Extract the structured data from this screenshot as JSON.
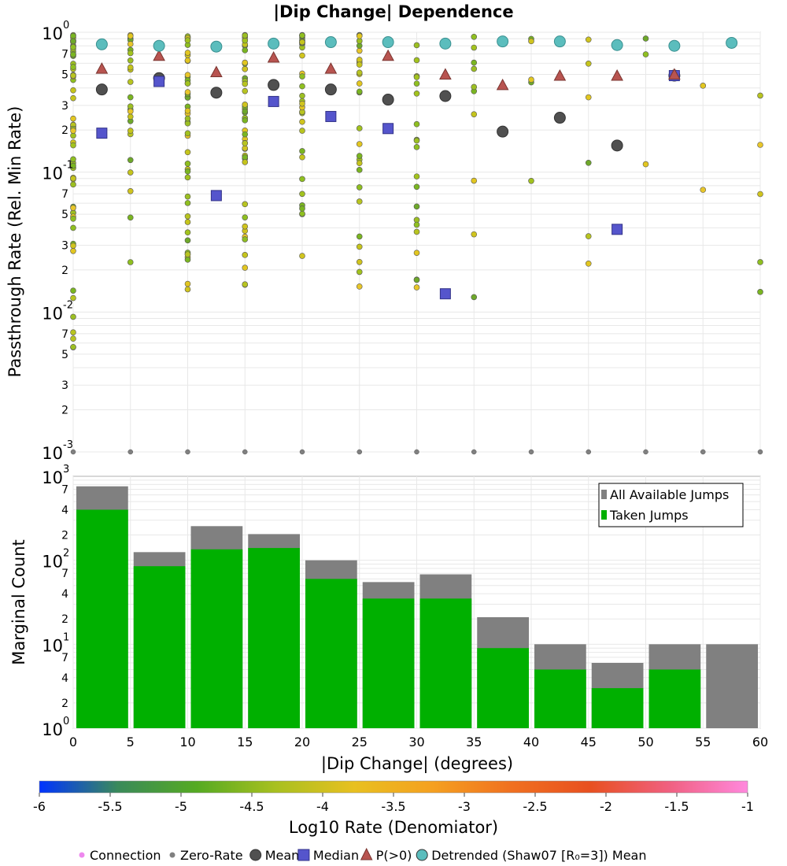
{
  "chart_data": [
    {
      "type": "scatter",
      "title": "|Dip Change| Dependence",
      "ylabel": "Passthrough Rate (Rel. Min Rate)",
      "xlim": [
        0,
        60
      ],
      "ylim": [
        0.001,
        1
      ],
      "yscale": "log",
      "y_decades": [
        "10",
        "10",
        "10",
        "10"
      ],
      "y_decade_exponents": [
        "-3",
        "-2",
        "-1",
        "0"
      ],
      "y_minor_labels": [
        "2",
        "3",
        "5",
        "7"
      ],
      "grid": true,
      "series": [
        {
          "name": "Zero-Rate",
          "color": "#808080",
          "x": [
            0,
            5,
            10,
            15,
            20,
            25,
            30,
            35,
            40,
            45,
            50,
            55,
            60
          ],
          "y": [
            0.001,
            0.001,
            0.001,
            0.001,
            0.001,
            0.001,
            0.001,
            0.001,
            0.001,
            0.001,
            0.001,
            0.001,
            0.001
          ]
        },
        {
          "name": "Mean",
          "color": "#505050",
          "x": [
            2.5,
            7.5,
            12.5,
            17.5,
            22.5,
            27.5,
            32.5,
            37.5,
            42.5,
            47.5,
            52.5
          ],
          "y": [
            0.39,
            0.47,
            0.37,
            0.42,
            0.39,
            0.33,
            0.35,
            0.195,
            0.245,
            0.155,
            0.49
          ]
        },
        {
          "name": "Median",
          "color": "#5555cc",
          "x": [
            2.5,
            7.5,
            12.5,
            17.5,
            22.5,
            27.5,
            32.5,
            47.5,
            52.5
          ],
          "y": [
            0.19,
            0.445,
            0.068,
            0.32,
            0.25,
            0.205,
            0.0135,
            0.039,
            0.49
          ]
        },
        {
          "name": "P(>0)",
          "color": "#b85450",
          "x": [
            2.5,
            7.5,
            12.5,
            17.5,
            22.5,
            27.5,
            32.5,
            37.5,
            42.5,
            47.5,
            52.5
          ],
          "y": [
            0.55,
            0.68,
            0.52,
            0.66,
            0.55,
            0.68,
            0.5,
            0.42,
            0.49,
            0.49,
            0.5
          ]
        },
        {
          "name": "Detrended (Shaw07 [R₀=3]) Mean",
          "color": "#5bbdbd",
          "x": [
            2.5,
            7.5,
            12.5,
            17.5,
            22.5,
            27.5,
            32.5,
            37.5,
            42.5,
            47.5,
            52.5,
            57.5
          ],
          "y": [
            0.82,
            0.8,
            0.79,
            0.83,
            0.85,
            0.85,
            0.83,
            0.86,
            0.86,
            0.81,
            0.8,
            0.84
          ]
        }
      ]
    },
    {
      "type": "bar",
      "ylabel": "Marginal Count",
      "xlabel": "|Dip Change| (degrees)",
      "yscale": "log",
      "ylim": [
        1,
        1000
      ],
      "y_decades": [
        "10",
        "10",
        "10",
        "10"
      ],
      "y_decade_exponents": [
        "0",
        "1",
        "2",
        "3"
      ],
      "y_minor_labels": [
        "2",
        "4",
        "7"
      ],
      "x_ticks": [
        "0",
        "5",
        "10",
        "15",
        "20",
        "25",
        "30",
        "35",
        "40",
        "45",
        "50",
        "55",
        "60"
      ],
      "bin_edges": [
        0,
        5,
        10,
        15,
        20,
        25,
        30,
        35,
        40,
        45,
        50,
        55,
        60
      ],
      "series": [
        {
          "name": "All Available Jumps",
          "color": "#808080",
          "values": [
            760,
            125,
            255,
            205,
            100,
            55,
            68,
            21,
            10,
            6,
            10,
            10
          ]
        },
        {
          "name": "Taken Jumps",
          "color": "#00b000",
          "values": [
            400,
            85,
            135,
            140,
            60,
            35,
            35,
            9,
            5,
            3,
            5,
            0
          ]
        }
      ]
    }
  ],
  "colorbar": {
    "label": "Log10 Rate (Denomiator)",
    "ticks": [
      "-6",
      "-5.5",
      "-5",
      "-4.5",
      "-4",
      "-3.5",
      "-3",
      "-2.5",
      "-2",
      "-1.5",
      "-1"
    ],
    "colors": [
      "#0033ff",
      "#3a8a5a",
      "#55aa22",
      "#a8c020",
      "#e8c020",
      "#f5a020",
      "#f07020",
      "#e85020",
      "#f06080",
      "#ff88dd"
    ]
  },
  "legend_bottom": [
    {
      "name": "Connection",
      "color": "#ee88ee",
      "icon": "dot-icon"
    },
    {
      "name": "Zero-Rate",
      "color": "#808080",
      "icon": "dot-icon"
    },
    {
      "name": "Mean",
      "color": "#505050",
      "icon": "circle-icon"
    },
    {
      "name": "Median",
      "color": "#5555cc",
      "icon": "square-icon"
    },
    {
      "name": "P(>0)",
      "color": "#b85450",
      "icon": "triangle-icon"
    },
    {
      "name": "Detrended (Shaw07 [R₀=3]) Mean",
      "color": "#5bbdbd",
      "icon": "circle-icon"
    }
  ]
}
